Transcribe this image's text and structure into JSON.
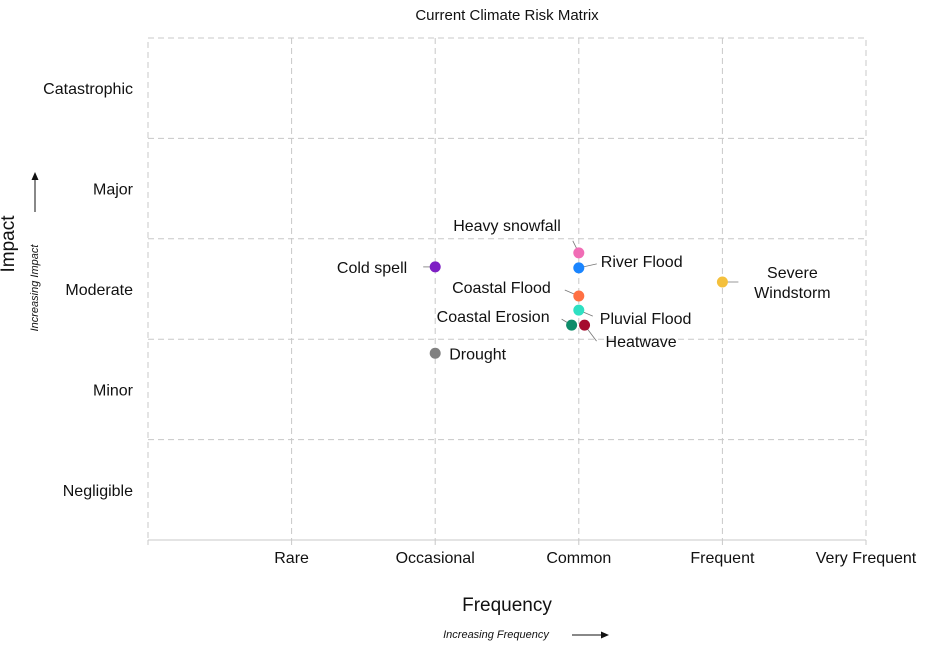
{
  "chart_data": {
    "type": "scatter",
    "title": "Current Climate Risk Matrix",
    "xlabel": "Frequency",
    "x_sublabel": "Increasing Frequency",
    "ylabel": "Impact",
    "y_sublabel": "Increasing Impact",
    "x_categories": [
      "Rare",
      "Occasional",
      "Common",
      "Frequent",
      "Very Frequent"
    ],
    "y_categories": [
      "Negligible",
      "Minor",
      "Moderate",
      "Major",
      "Catastrophic"
    ],
    "xlim": [
      0,
      5
    ],
    "ylim": [
      0,
      5
    ],
    "grid": true,
    "points": [
      {
        "label": "Heavy snowfall",
        "x": 3.0,
        "y": 2.86,
        "color": "#f06db5"
      },
      {
        "label": "River Flood",
        "x": 3.0,
        "y": 2.71,
        "color": "#1a85ff"
      },
      {
        "label": "Cold spell",
        "x": 2.0,
        "y": 2.72,
        "color": "#7e1fc4"
      },
      {
        "label": "Severe\nWindstorm",
        "x": 4.0,
        "y": 2.57,
        "color": "#f4c03c"
      },
      {
        "label": "Coastal Flood",
        "x": 3.0,
        "y": 2.43,
        "color": "#ff7043"
      },
      {
        "label": "Pluvial Flood",
        "x": 3.0,
        "y": 2.29,
        "color": "#2ee0c2"
      },
      {
        "label": "Coastal Erosion",
        "x": 2.95,
        "y": 2.14,
        "color": "#0e8c6a"
      },
      {
        "label": "Heatwave",
        "x": 3.04,
        "y": 2.14,
        "color": "#a50c2e"
      },
      {
        "label": "Drought",
        "x": 2.0,
        "y": 1.86,
        "color": "#808080"
      }
    ]
  }
}
